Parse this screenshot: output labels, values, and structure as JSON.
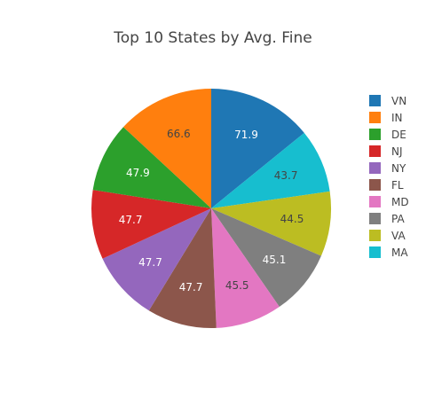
{
  "chart_data": {
    "type": "pie",
    "title": "Top 10 States by Avg. Fine",
    "direction": "clockwise",
    "start": "top",
    "legend_position": "right",
    "slices": [
      {
        "label": "VN",
        "value": 71.9,
        "text": "71.9",
        "color": "#1f77b4",
        "text_color": "#ffffff"
      },
      {
        "label": "MA",
        "value": 43.7,
        "text": "43.7",
        "color": "#17becf",
        "text_color": "#444444"
      },
      {
        "label": "VA",
        "value": 44.5,
        "text": "44.5",
        "color": "#bcbd22",
        "text_color": "#444444"
      },
      {
        "label": "PA",
        "value": 45.1,
        "text": "45.1",
        "color": "#7f7f7f",
        "text_color": "#ffffff"
      },
      {
        "label": "MD",
        "value": 45.5,
        "text": "45.5",
        "color": "#e377c2",
        "text_color": "#444444"
      },
      {
        "label": "FL",
        "value": 47.7,
        "text": "47.7",
        "color": "#8c564b",
        "text_color": "#ffffff"
      },
      {
        "label": "NY",
        "value": 47.7,
        "text": "47.7",
        "color": "#9467bd",
        "text_color": "#ffffff"
      },
      {
        "label": "NJ",
        "value": 47.7,
        "text": "47.7",
        "color": "#d62728",
        "text_color": "#ffffff"
      },
      {
        "label": "DE",
        "value": 47.9,
        "text": "47.9",
        "color": "#2ca02c",
        "text_color": "#ffffff"
      },
      {
        "label": "IN",
        "value": 66.6,
        "text": "66.6",
        "color": "#ff7f0e",
        "text_color": "#444444"
      }
    ],
    "legend": [
      {
        "label": "VN",
        "color": "#1f77b4"
      },
      {
        "label": "IN",
        "color": "#ff7f0e"
      },
      {
        "label": "DE",
        "color": "#2ca02c"
      },
      {
        "label": "NJ",
        "color": "#d62728"
      },
      {
        "label": "NY",
        "color": "#9467bd"
      },
      {
        "label": "FL",
        "color": "#8c564b"
      },
      {
        "label": "MD",
        "color": "#e377c2"
      },
      {
        "label": "PA",
        "color": "#7f7f7f"
      },
      {
        "label": "VA",
        "color": "#bcbd22"
      },
      {
        "label": "MA",
        "color": "#17becf"
      }
    ]
  }
}
